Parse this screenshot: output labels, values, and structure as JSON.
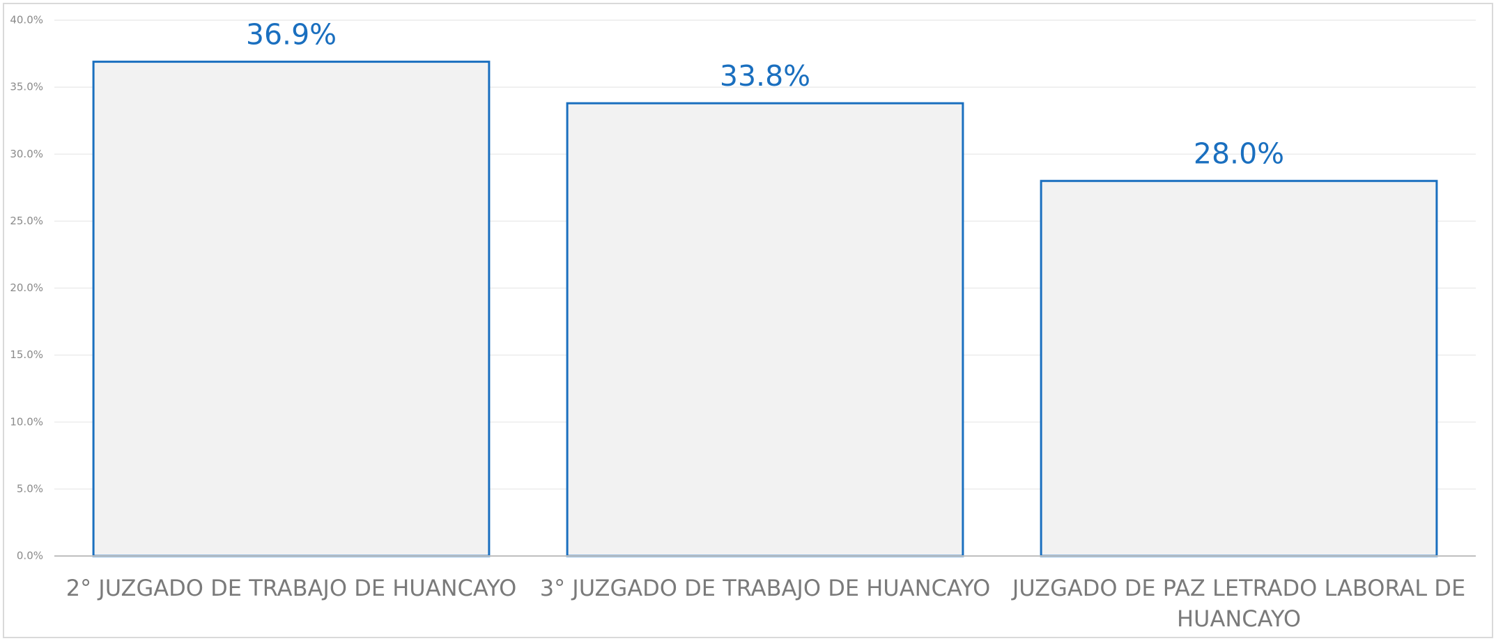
{
  "chart_data": {
    "type": "bar",
    "categories": [
      "2° JUZGADO DE TRABAJO DE HUANCAYO",
      "3° JUZGADO DE TRABAJO DE HUANCAYO",
      "JUZGADO DE PAZ LETRADO LABORAL DE HUANCAYO"
    ],
    "values": [
      36.9,
      33.8,
      28.0
    ],
    "value_labels": [
      "36.9%",
      "33.8%",
      "28.0%"
    ],
    "color": "#f2f2f2",
    "edge_color": "#1a6fbf",
    "ylim": [
      0,
      40
    ],
    "yticks": [
      {
        "value": 0,
        "label": "0.0%"
      },
      {
        "value": 5,
        "label": "5.0%"
      },
      {
        "value": 10,
        "label": "10.0%"
      },
      {
        "value": 15,
        "label": "15.0%"
      },
      {
        "value": 20,
        "label": "20.0%"
      },
      {
        "value": 25,
        "label": "25.0%"
      },
      {
        "value": 30,
        "label": "30.0%"
      },
      {
        "value": 35,
        "label": "35.0%"
      },
      {
        "value": 40,
        "label": "40.0%"
      }
    ],
    "grid": true
  }
}
